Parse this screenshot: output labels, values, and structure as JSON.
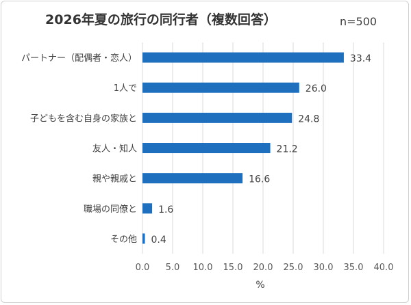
{
  "chart_data": {
    "type": "bar",
    "orientation": "horizontal",
    "title": "2026年夏の旅行の同行者（複数回答）",
    "subtitle": "n=500",
    "xlabel": "%",
    "ylabel": "",
    "categories": [
      "パートナー（配偶者・恋人）",
      "1人で",
      "子どもを含む自身の家族と",
      "友人・知人",
      "親や親戚と",
      "職場の同僚と",
      "その他"
    ],
    "values": [
      33.4,
      26.0,
      24.8,
      21.2,
      16.6,
      1.6,
      0.4
    ],
    "value_labels": [
      "33.4",
      "26.0",
      "24.8",
      "21.2",
      "16.6",
      "1.6",
      "0.4"
    ],
    "xlim": [
      0,
      40
    ],
    "ticks": [
      "0.0",
      "5.0",
      "10.0",
      "15.0",
      "20.0",
      "25.0",
      "30.0",
      "35.0",
      "40.0"
    ],
    "grid": true,
    "bar_color": "#1f6fbf",
    "grid_color": "#d9d9d9"
  }
}
